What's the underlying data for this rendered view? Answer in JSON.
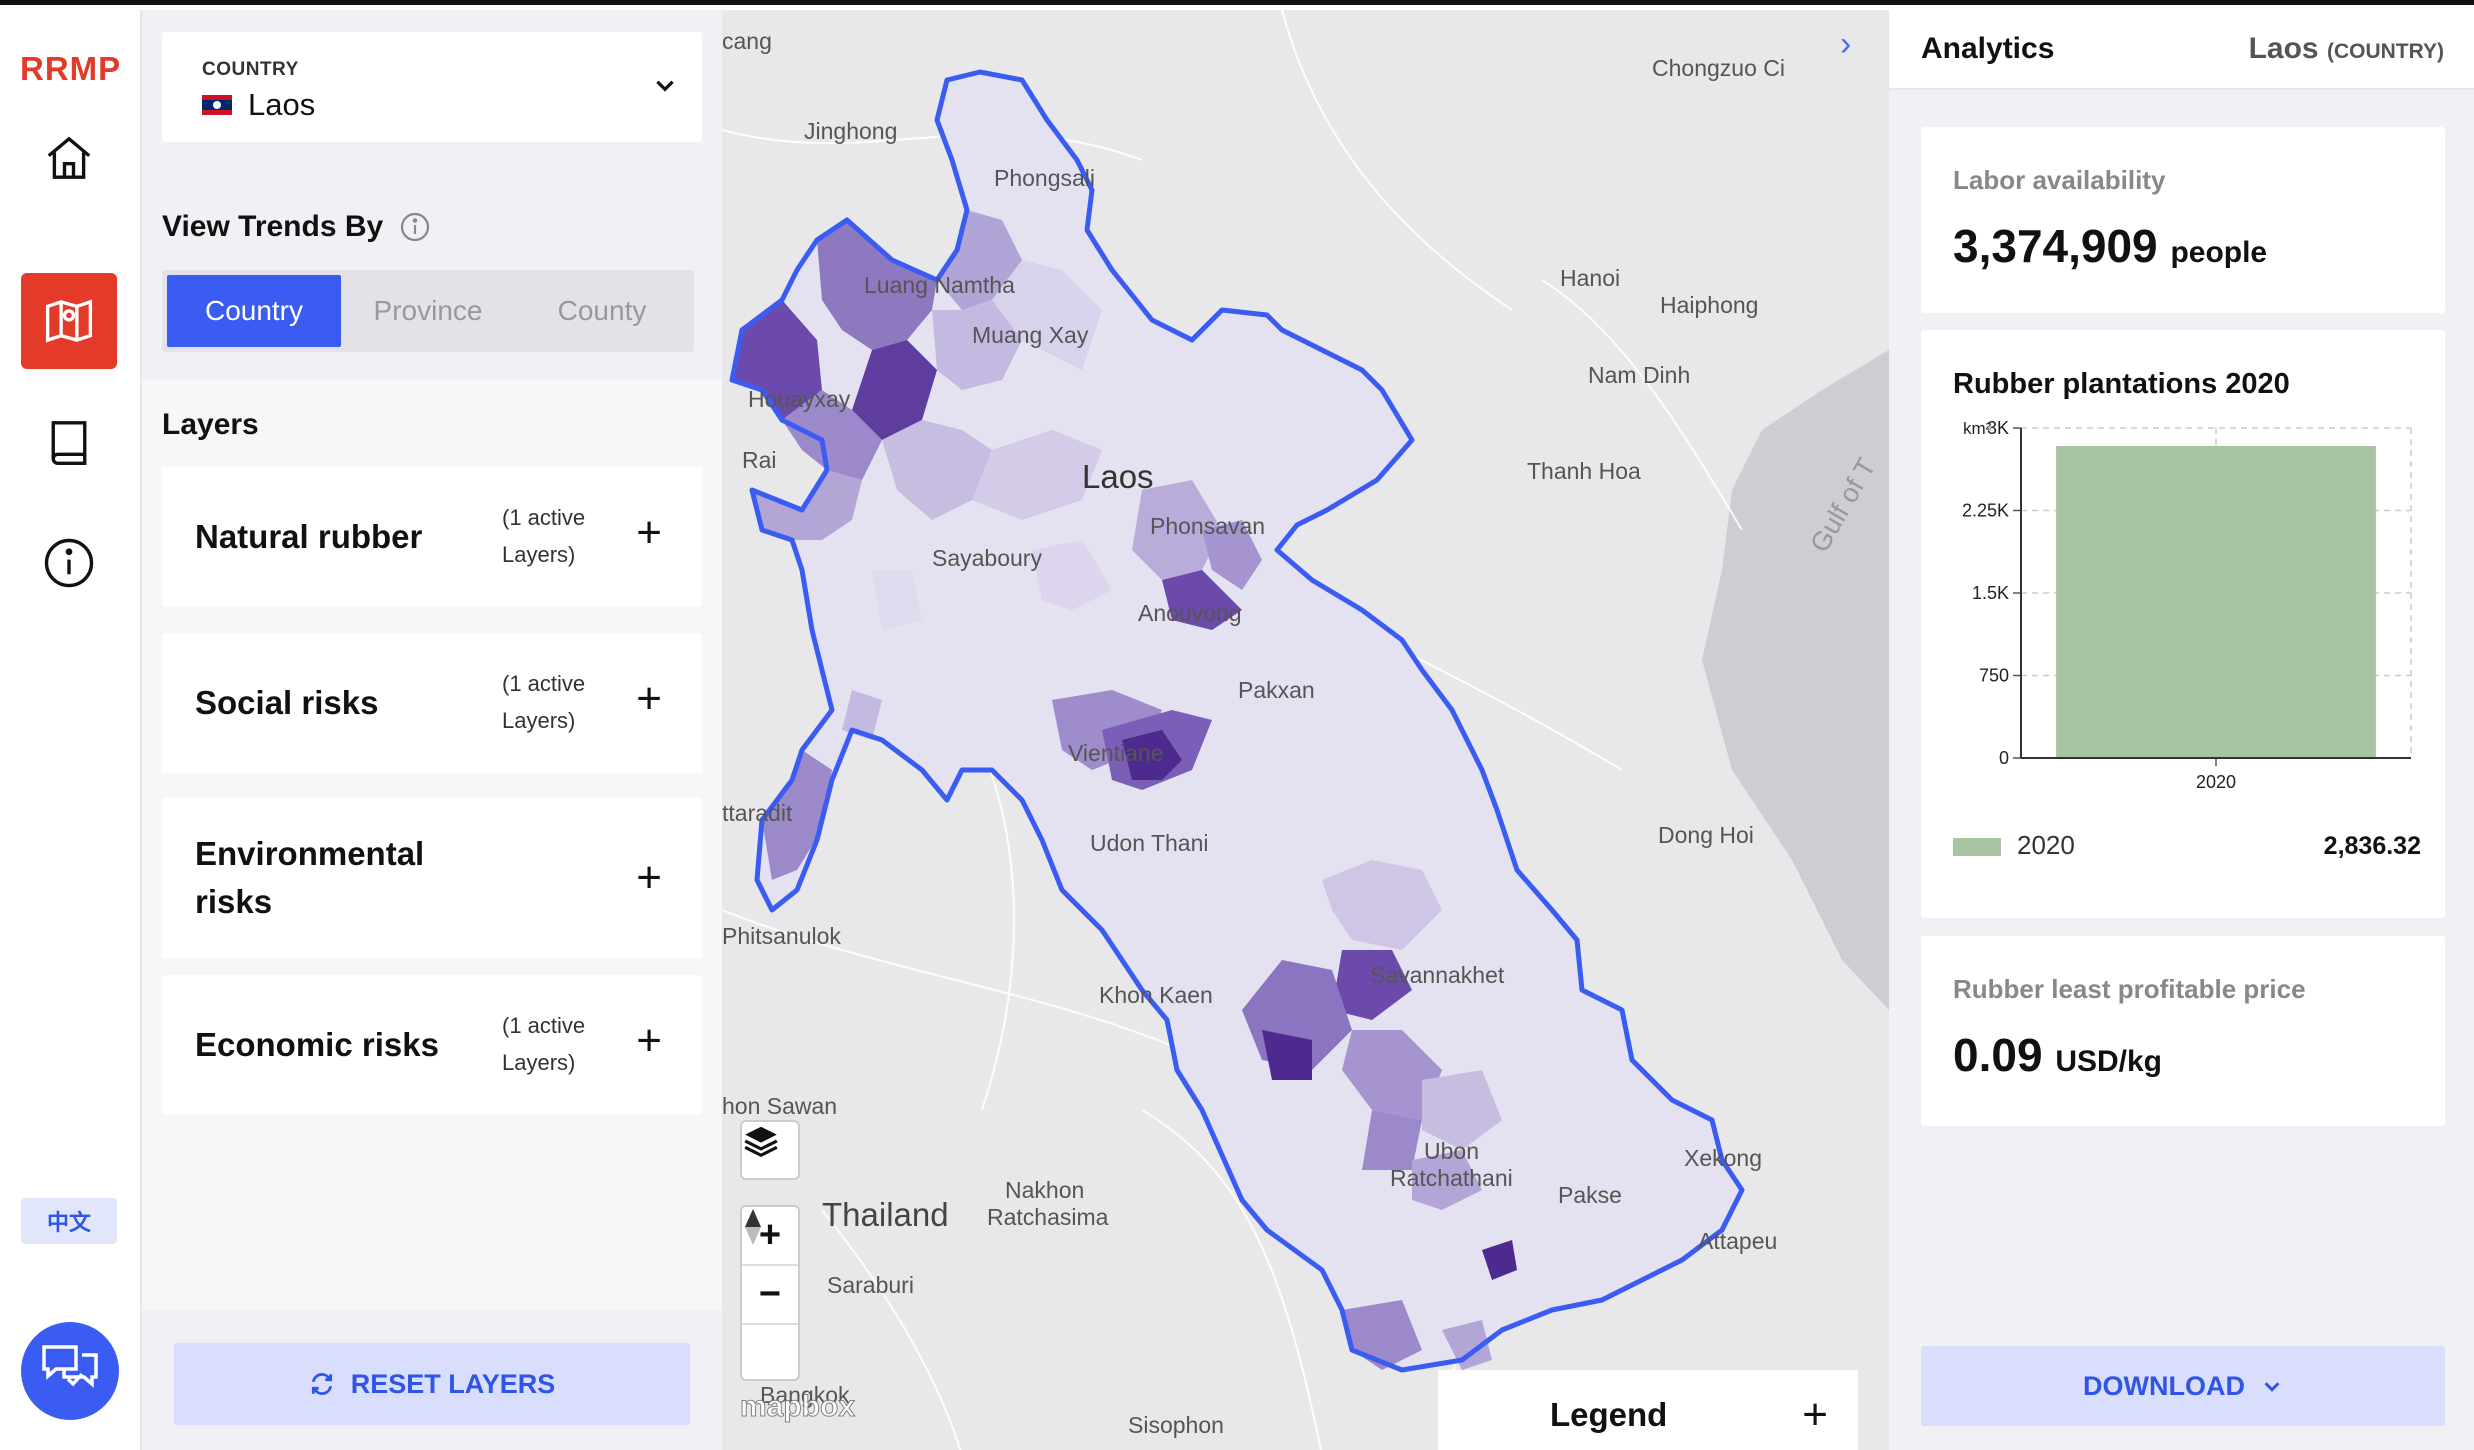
{
  "app": {
    "logo": "RRMP",
    "lang": "中文"
  },
  "nav": [
    {
      "name": "home-icon"
    },
    {
      "name": "map-icon"
    },
    {
      "name": "book-icon"
    },
    {
      "name": "info-icon"
    }
  ],
  "selector": {
    "caption": "COUNTRY",
    "value": "Laos"
  },
  "trends": {
    "label": "View Trends By",
    "options": [
      "Country",
      "Province",
      "County"
    ],
    "selected": "Country"
  },
  "layers": {
    "title": "Layers",
    "items": [
      {
        "name": "Natural rubber",
        "active1": "(1 active",
        "active2": "Layers)"
      },
      {
        "name": "Social risks",
        "active1": "(1 active",
        "active2": "Layers)"
      },
      {
        "name": "Environmental",
        "name2": "risks",
        "active1": "",
        "active2": ""
      },
      {
        "name": "Economic risks",
        "active1": "(1 active",
        "active2": "Layers)"
      }
    ],
    "reset": "RESET LAYERS"
  },
  "map": {
    "labels": [
      "cang",
      "Jinghong",
      "Phongsali",
      "Luang Namtha",
      "Muang Xay",
      "Houayxay",
      "Rai",
      "Laos",
      "Phonsavan",
      "Sayaboury",
      "Anouvong",
      "Pakxan",
      "Vientiane",
      "Udon Thani",
      "Khon Kaen",
      "Hanoi",
      "Haiphong",
      "Nam Dinh",
      "Thanh Hoa",
      "Gulf of T",
      "Dong Hoi",
      "Savannakhet",
      "Ubon",
      "Ratchathani",
      "Pakse",
      "Xekong",
      "Attapeu",
      "Thailand",
      "Nakhon",
      "Ratchasima",
      "Saraburi",
      "hon Sawan",
      "Phitsanulok",
      "ttaradit",
      "Bangkok",
      "Sisophon",
      "Chongzuo Ci"
    ],
    "attribution": "mapbox",
    "legend": "Legend",
    "accent": "#3b5cf3"
  },
  "analytics": {
    "title": "Analytics",
    "location": "Laos",
    "location_type": "(COUNTRY)",
    "labor": {
      "label": "Labor availability",
      "value": "3,374,909",
      "unit": "people"
    },
    "price": {
      "label": "Rubber least profitable price",
      "value": "0.09",
      "unit": "USD/kg"
    },
    "download": "DOWNLOAD"
  },
  "chart_data": {
    "type": "bar",
    "title": "Rubber plantations 2020",
    "ylabel": "km²",
    "categories": [
      "2020"
    ],
    "series": [
      {
        "name": "2020",
        "values": [
          2836.32
        ],
        "color": "#a9c4a0"
      }
    ],
    "yticks": [
      "0",
      "750",
      "1.5K",
      "2.25K",
      "3K"
    ],
    "ylim": [
      0,
      3000
    ],
    "legend_value": "2,836.32",
    "grid": true,
    "legend_placement": "bottom"
  }
}
